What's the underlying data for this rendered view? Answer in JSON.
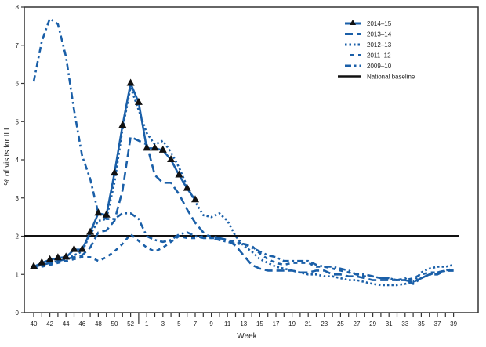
{
  "chart_data": {
    "type": "line",
    "title": "",
    "xlabel": "Week",
    "ylabel": "% of visits for ILI",
    "ylim": [
      0,
      8
    ],
    "yticks": [
      "0",
      "1",
      "2",
      "3",
      "4",
      "5",
      "6",
      "7",
      "8"
    ],
    "categories": [
      "40",
      "41",
      "42",
      "43",
      "44",
      "45",
      "46",
      "47",
      "48",
      "49",
      "50",
      "51",
      "52",
      "53",
      "1",
      "2",
      "3",
      "4",
      "5",
      "6",
      "7",
      "8",
      "9",
      "10",
      "11",
      "12",
      "13",
      "14",
      "15",
      "16",
      "17",
      "18",
      "19",
      "20",
      "21",
      "22",
      "23",
      "24",
      "25",
      "26",
      "27",
      "28",
      "29",
      "30",
      "31",
      "32",
      "33",
      "34",
      "35",
      "36",
      "37",
      "38",
      "39"
    ],
    "xtick_labels": [
      "40",
      "42",
      "44",
      "46",
      "48",
      "50",
      "52",
      "1",
      "3",
      "5",
      "7",
      "9",
      "11",
      "13",
      "15",
      "17",
      "19",
      "21",
      "23",
      "25",
      "27",
      "29",
      "31",
      "33",
      "35",
      "37",
      "39"
    ],
    "legend_position": "top-right",
    "grid": false,
    "color": "#1a5fa8",
    "baseline": {
      "name": "National baseline",
      "value": 2.0,
      "color": "#111111"
    },
    "series": [
      {
        "name": "2014–15",
        "style": "solid-triangle",
        "values": [
          1.2,
          1.3,
          1.38,
          1.43,
          1.45,
          1.65,
          1.65,
          2.1,
          2.6,
          2.55,
          3.65,
          4.9,
          6.0,
          5.5,
          4.3,
          4.3,
          4.25,
          4.0,
          3.6,
          3.25,
          2.95,
          null,
          null,
          null,
          null,
          null,
          null,
          null,
          null,
          null,
          null,
          null,
          null,
          null,
          null,
          null,
          null,
          null,
          null,
          null,
          null,
          null,
          null,
          null,
          null,
          null,
          null,
          null,
          null,
          null,
          null,
          null,
          null
        ]
      },
      {
        "name": "2013–14",
        "style": "long-dash",
        "values": [
          1.2,
          1.25,
          1.3,
          1.35,
          1.4,
          1.45,
          1.5,
          1.7,
          2.1,
          2.15,
          2.4,
          3.2,
          4.6,
          null,
          4.4,
          3.6,
          3.4,
          3.4,
          3.1,
          2.7,
          2.35,
          2.1,
          1.95,
          1.95,
          1.9,
          1.75,
          1.5,
          1.25,
          1.15,
          1.1,
          1.1,
          1.1,
          1.1,
          1.05,
          1.05,
          1.1,
          1.1,
          1.0,
          1.0,
          0.95,
          0.95,
          0.9,
          0.85,
          0.85,
          0.85,
          0.85,
          0.85,
          0.8,
          0.9,
          1.0,
          1.05,
          1.1,
          1.1
        ]
      },
      {
        "name": "2012–13",
        "style": "dotted",
        "values": [
          1.2,
          1.25,
          1.3,
          1.35,
          1.4,
          1.5,
          1.6,
          2.05,
          2.4,
          2.45,
          3.4,
          4.8,
          5.9,
          null,
          4.7,
          4.4,
          4.5,
          4.2,
          3.8,
          3.3,
          2.9,
          2.55,
          2.5,
          2.6,
          2.4,
          2.0,
          1.75,
          1.6,
          1.4,
          1.3,
          1.2,
          1.15,
          1.1,
          1.05,
          1.0,
          1.0,
          0.95,
          0.95,
          0.9,
          0.85,
          0.85,
          0.8,
          0.75,
          0.72,
          0.72,
          0.72,
          0.75,
          0.8,
          1.05,
          1.15,
          1.2,
          1.2,
          1.25
        ]
      },
      {
        "name": "2011–12",
        "style": "short-dash",
        "values": [
          1.15,
          1.2,
          1.25,
          1.3,
          1.35,
          1.4,
          1.45,
          1.45,
          1.35,
          1.45,
          1.6,
          1.8,
          2.05,
          null,
          1.7,
          1.6,
          1.7,
          1.85,
          2.0,
          1.95,
          1.95,
          2.0,
          2.0,
          1.95,
          1.9,
          1.85,
          1.8,
          1.75,
          1.55,
          1.4,
          1.3,
          1.25,
          1.3,
          1.3,
          1.3,
          1.2,
          1.2,
          1.15,
          1.1,
          1.05,
          1.0,
          0.95,
          0.95,
          0.9,
          0.9,
          0.85,
          0.85,
          0.9,
          1.0,
          1.05,
          1.05,
          1.1,
          1.15
        ]
      },
      {
        "name": "2009–10",
        "style": "dash-dot",
        "values": [
          6.05,
          7.1,
          7.7,
          7.55,
          6.7,
          5.3,
          4.1,
          3.5,
          2.6,
          2.45,
          2.45,
          2.6,
          2.6,
          2.45,
          2.0,
          1.9,
          1.85,
          1.9,
          2.05,
          2.1,
          2.0,
          1.95,
          1.95,
          1.9,
          1.85,
          1.8,
          1.8,
          1.7,
          1.6,
          1.5,
          1.45,
          1.35,
          1.35,
          1.35,
          1.35,
          1.25,
          1.2,
          1.2,
          1.15,
          1.1,
          1.0,
          1.0,
          0.95,
          0.9,
          0.9,
          0.85,
          0.9,
          0.75,
          0.9,
          1.0,
          1.0,
          1.1,
          1.1
        ]
      }
    ]
  }
}
